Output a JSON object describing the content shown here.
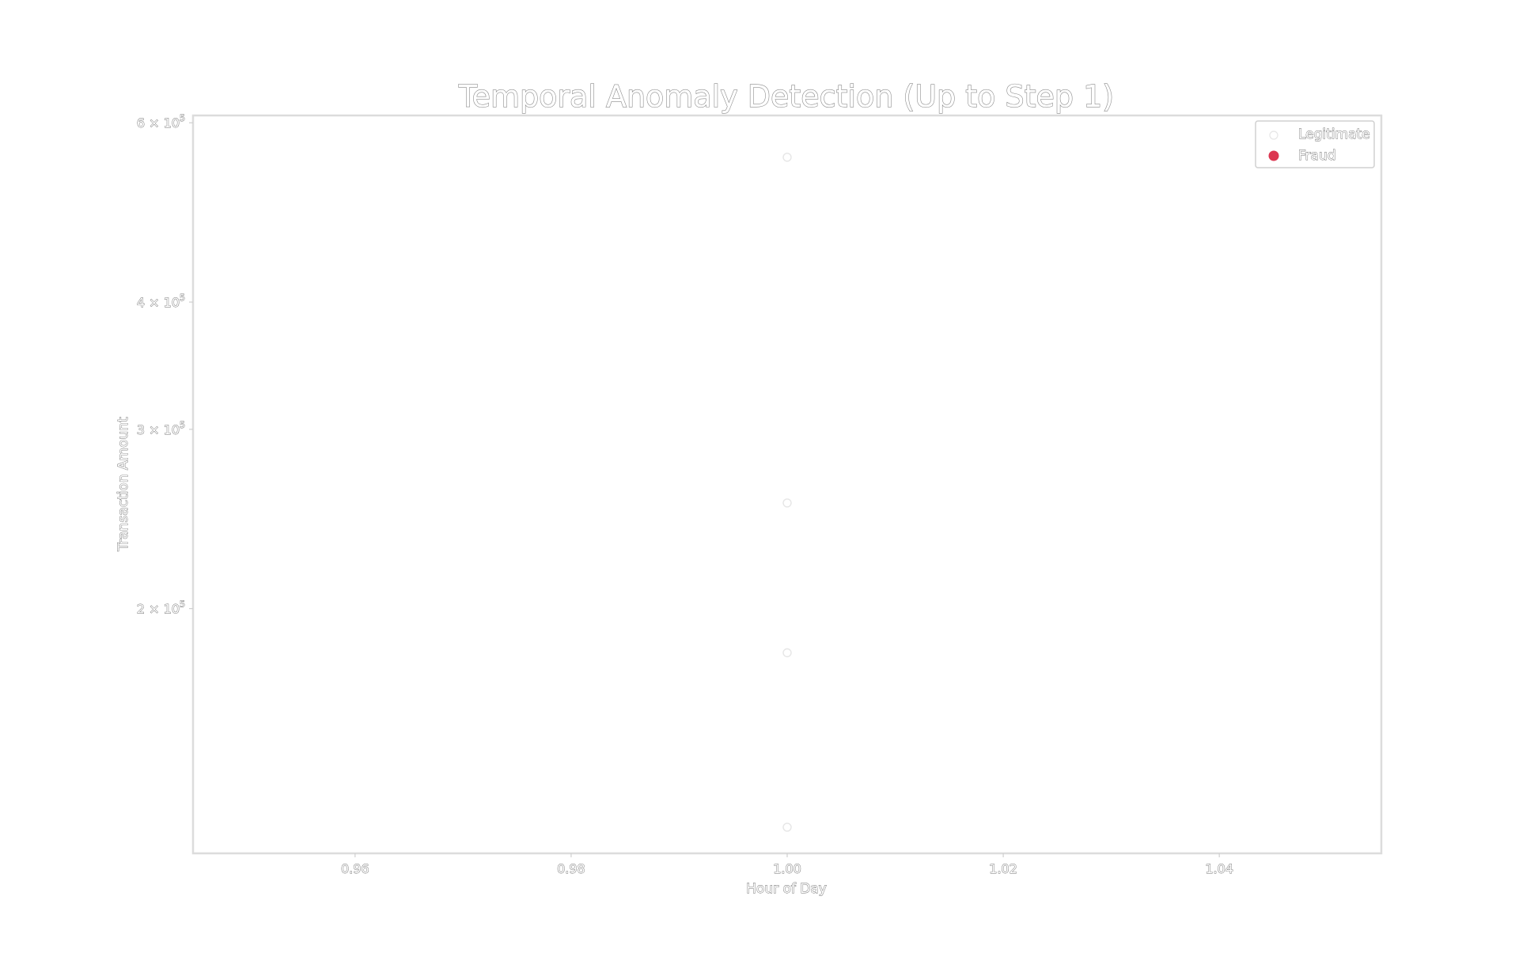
{
  "chart_data": {
    "type": "scatter",
    "title": "Temporal Anomaly Detection (Up to Step 1)",
    "xlabel": "Hour of Day",
    "ylabel": "Transaction Amount",
    "xlim": [
      0.945,
      1.055
    ],
    "ylim": [
      115000,
      610000
    ],
    "y_scale": "log",
    "x_ticks": [
      {
        "value": 0.96,
        "label": "0.96"
      },
      {
        "value": 0.98,
        "label": "0.98"
      },
      {
        "value": 1.0,
        "label": "1.00"
      },
      {
        "value": 1.02,
        "label": "1.02"
      },
      {
        "value": 1.04,
        "label": "1.04"
      }
    ],
    "y_ticks": [
      {
        "value": 200000,
        "mantissa": "2",
        "times": "×",
        "base": "10",
        "exp": "5"
      },
      {
        "value": 300000,
        "mantissa": "3",
        "times": "×",
        "base": "10",
        "exp": "5"
      },
      {
        "value": 400000,
        "mantissa": "4",
        "times": "×",
        "base": "10",
        "exp": "5"
      },
      {
        "value": 600000,
        "mantissa": "6",
        "times": "×",
        "base": "10",
        "exp": "5"
      }
    ],
    "grid": false,
    "legend_position": "top-right",
    "series": [
      {
        "name": "Legitimate",
        "color": "#e6e6e6",
        "points": [
          {
            "x": 1.0,
            "y": 555000
          },
          {
            "x": 1.0,
            "y": 254000
          },
          {
            "x": 1.0,
            "y": 181000
          },
          {
            "x": 1.0,
            "y": 122000
          }
        ]
      },
      {
        "name": "Fraud",
        "color": "#dc3751",
        "points": []
      }
    ]
  }
}
